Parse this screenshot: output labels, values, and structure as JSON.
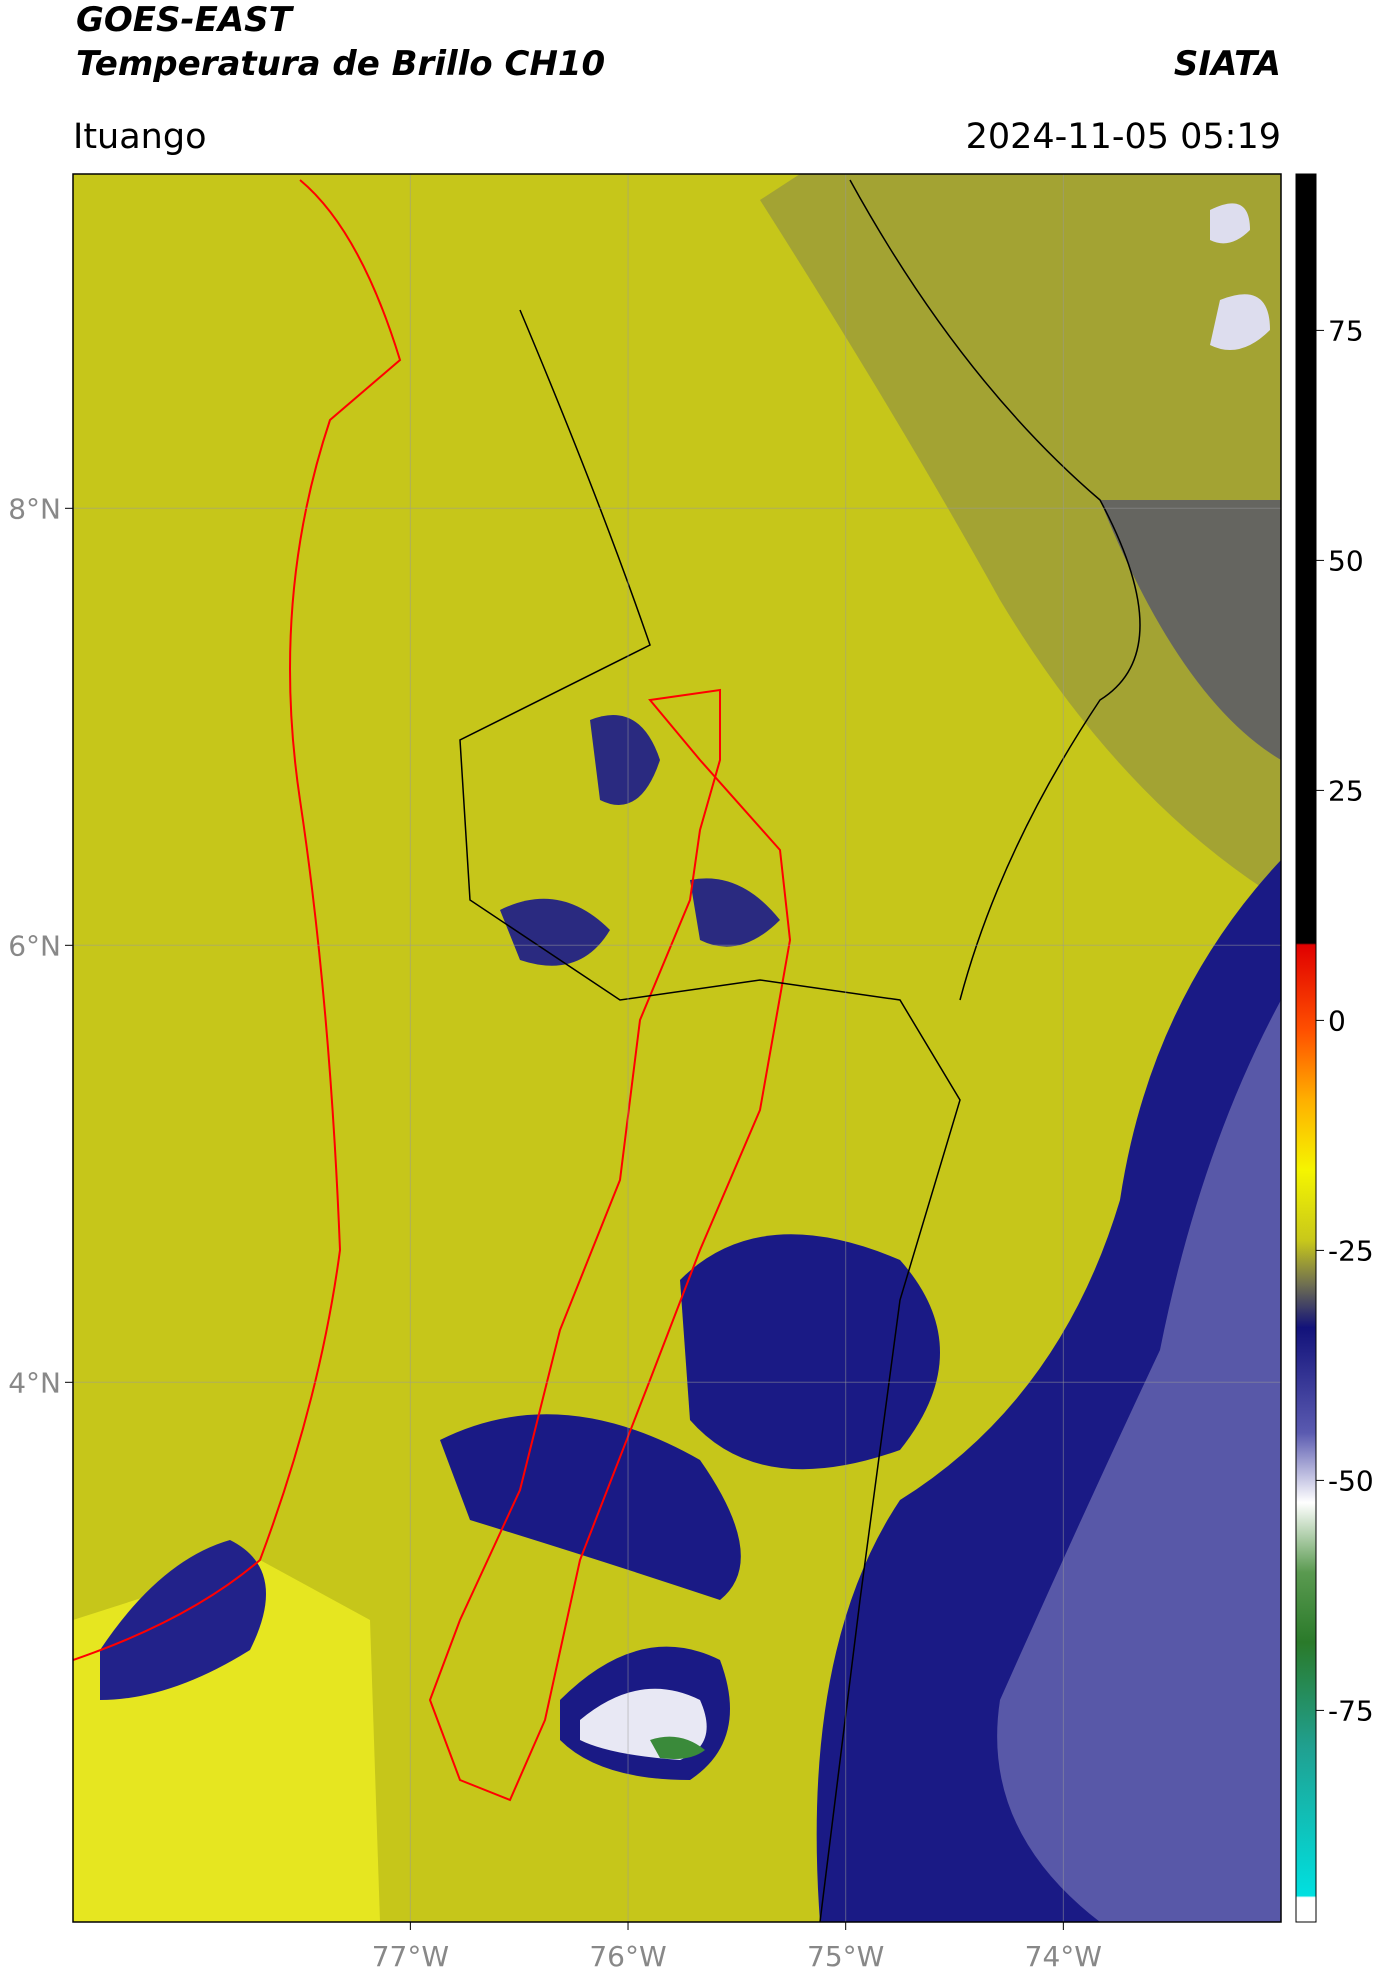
{
  "header": {
    "title": "GOES-EAST",
    "product": "Temperatura de Brillo CH10",
    "agency": "SIATA",
    "region": "Ituango",
    "timestamp": "2024-11-05 05:19"
  },
  "map": {
    "xlim": [
      -78.55,
      -73.0
    ],
    "ylim": [
      1.53,
      9.53
    ],
    "xticks": [
      {
        "value": -77,
        "label": "77°W"
      },
      {
        "value": -76,
        "label": "76°W"
      },
      {
        "value": -75,
        "label": "75°W"
      },
      {
        "value": -74,
        "label": "74°W"
      }
    ],
    "yticks": [
      {
        "value": 8,
        "label": "8°N"
      },
      {
        "value": 6,
        "label": "6°N"
      },
      {
        "value": 4,
        "label": "4°N"
      }
    ],
    "grid": true
  },
  "colorbar": {
    "lim": [
      -98,
      92
    ],
    "ticks": [
      75,
      50,
      25,
      0,
      -25,
      -50,
      -75
    ]
  }
}
